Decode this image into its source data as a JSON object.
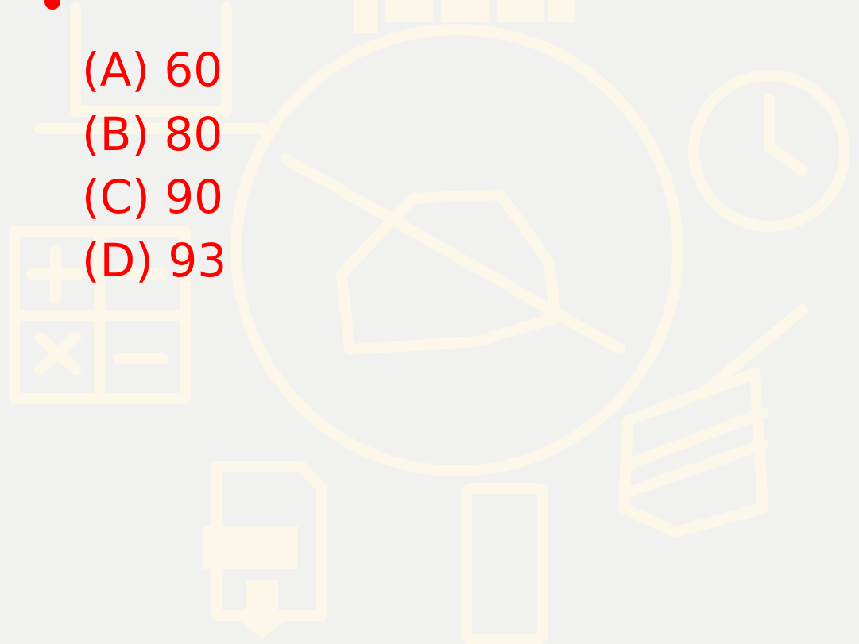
{
  "options": [
    "(A) 60",
    "(B) 80",
    "(C) 90",
    "(D) 93"
  ]
}
